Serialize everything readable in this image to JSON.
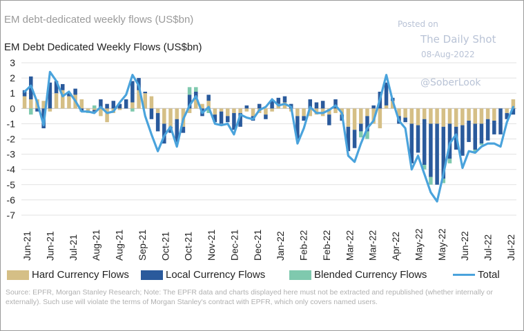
{
  "supertitle": "EM debt-dedicated weekly flows (US$bn)",
  "watermark": {
    "posted_on": "Posted on",
    "site": "The Daily Shot",
    "date": "08-Aug-2022",
    "handle": "@SoberLook"
  },
  "source": "Source: EPFR, Morgan Stanley Research; Note: The EPFR data and charts displayed here must not be extracted and republished (whether internally or externally). Such use will violate the terms of Morgan Stanley's contract with EPFR, which only covers named users.",
  "colors": {
    "hard": "#d5bf86",
    "local": "#2a5a9c",
    "blended": "#7fc9ae",
    "total": "#4aa3dc"
  },
  "chart_data": {
    "type": "bar",
    "title": "EM Debt Dedicated Weekly Flows (US$bn)",
    "xlabel": "",
    "ylabel": "",
    "ylim": [
      -7,
      3
    ],
    "yticks": [
      3,
      2,
      1,
      0,
      -1,
      -2,
      -3,
      -4,
      -5,
      -6,
      -7
    ],
    "x_tick_labels": [
      "Jun-21",
      "Jun-21",
      "Jul-21",
      "Aug-21",
      "Aug-21",
      "Sep-21",
      "Oct-21",
      "Oct-21",
      "Nov-21",
      "Dec-21",
      "Dec-21",
      "Jan-22",
      "Feb-22",
      "Feb-22",
      "Mar-22",
      "Mar-22",
      "Apr-22",
      "May-22",
      "May-22",
      "Jun-22",
      "Jul-22",
      "Jul-22"
    ],
    "legend": [
      "Hard Currency Flows",
      "Local Currency Flows",
      "Blended Currency Flows",
      "Total"
    ],
    "series": [
      {
        "name": "Hard Currency Flows",
        "values": [
          0.8,
          0.6,
          0.6,
          0.5,
          -0.2,
          1.0,
          1.2,
          0.8,
          0.9,
          0.6,
          -0.2,
          -0.1,
          -0.5,
          -0.9,
          -0.3,
          -0.1,
          0.0,
          0.4,
          1.2,
          1.0,
          0.8,
          -0.3,
          -1.0,
          -1.2,
          -0.7,
          -1.2,
          -0.3,
          0.6,
          0.3,
          0.5,
          -0.4,
          -0.2,
          -0.5,
          -0.3,
          -0.3,
          -0.2,
          -0.5,
          -0.3,
          -0.4,
          -0.2,
          0.3,
          0.4,
          -0.2,
          -0.5,
          -0.5,
          -0.5,
          -0.4,
          -0.5,
          -0.4,
          -0.3,
          -0.4,
          -1.2,
          -1.4,
          -1.0,
          -0.5,
          -1.0,
          -1.3,
          0.2,
          0.5,
          -0.5,
          -0.6,
          -1.0,
          -1.1,
          -0.7,
          -1.0,
          -1.0,
          -1.2,
          -1.0,
          -1.2,
          -1.1,
          -0.8,
          -1.0,
          -1.0,
          -0.7,
          -0.8,
          0.0,
          -0.3,
          0.6
        ]
      },
      {
        "name": "Local Currency Flows",
        "values": [
          0.4,
          1.5,
          -0.2,
          -1.3,
          1.7,
          0.8,
          0.4,
          0.2,
          0.4,
          -0.2,
          0.0,
          -0.1,
          0.6,
          0.3,
          0.5,
          0.3,
          0.6,
          1.4,
          0.8,
          0.1,
          -0.7,
          -1.2,
          -1.3,
          -0.4,
          -1.5,
          -0.4,
          0.9,
          0.5,
          -0.5,
          0.4,
          -0.5,
          -0.8,
          -0.4,
          -1.1,
          -0.9,
          0.2,
          -0.3,
          0.3,
          -0.3,
          0.5,
          0.4,
          0.4,
          0.3,
          -1.5,
          -0.3,
          0.6,
          0.4,
          0.5,
          -0.7,
          0.6,
          -0.4,
          -1.6,
          -1.2,
          -0.5,
          -1.0,
          0.2,
          1.1,
          1.5,
          0.2,
          -0.5,
          -0.3,
          -2.6,
          -1.8,
          -3.0,
          -3.5,
          -4.0,
          -3.4,
          -2.3,
          -1.5,
          -2.0,
          -1.4,
          -1.7,
          -1.3,
          -1.4,
          -0.9,
          -1.7,
          -0.4,
          -0.4
        ]
      },
      {
        "name": "Blended Currency Flows",
        "values": [
          0.0,
          -0.4,
          0.0,
          0.0,
          0.0,
          0.0,
          0.0,
          0.0,
          0.0,
          0.0,
          -0.1,
          0.2,
          0.0,
          0.0,
          0.0,
          0.0,
          0.0,
          -0.2,
          0.0,
          0.0,
          0.0,
          0.0,
          0.0,
          0.0,
          0.0,
          0.0,
          0.5,
          0.3,
          0.0,
          -0.3,
          0.0,
          0.0,
          0.0,
          0.0,
          0.0,
          0.0,
          0.0,
          0.0,
          0.0,
          0.0,
          0.0,
          0.0,
          0.0,
          0.0,
          0.0,
          0.0,
          0.0,
          0.0,
          0.0,
          0.0,
          0.0,
          0.0,
          0.0,
          -0.4,
          -0.5,
          0.0,
          0.0,
          0.0,
          0.0,
          0.0,
          0.0,
          0.0,
          0.0,
          -0.3,
          -0.5,
          0.0,
          -0.3,
          -0.3,
          0.0,
          0.0,
          0.0,
          -0.2,
          -0.1,
          0.0,
          0.0,
          0.0,
          0.0,
          0.0
        ]
      },
      {
        "name": "Total",
        "values": [
          1.1,
          1.5,
          0.4,
          -1.1,
          2.4,
          1.8,
          0.8,
          1.1,
          0.5,
          -0.2,
          -0.2,
          -0.3,
          0.1,
          -0.3,
          -0.2,
          0.4,
          0.9,
          2.2,
          1.5,
          -0.5,
          -1.7,
          -2.8,
          -1.8,
          -1.2,
          -2.5,
          -0.7,
          0.2,
          0.8,
          -0.3,
          0.1,
          -1.0,
          -1.1,
          -1.0,
          -1.7,
          -0.4,
          -0.6,
          -0.7,
          -0.1,
          0.1,
          0.6,
          0.2,
          0.3,
          0.1,
          -2.3,
          -1.3,
          0.1,
          -0.3,
          -0.3,
          -0.1,
          0.2,
          -0.3,
          -3.1,
          -3.5,
          -2.3,
          -1.3,
          -0.8,
          0.6,
          2.2,
          0.5,
          -0.8,
          -1.3,
          -4.0,
          -3.1,
          -4.3,
          -5.5,
          -6.1,
          -4.3,
          -2.3,
          -1.7,
          -3.9,
          -2.8,
          -2.9,
          -2.5,
          -2.3,
          -2.3,
          -2.5,
          -0.9,
          0.1
        ]
      }
    ]
  }
}
